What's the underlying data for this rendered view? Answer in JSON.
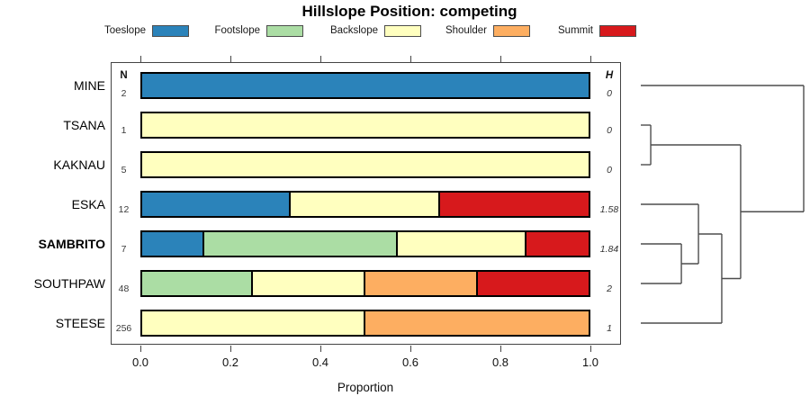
{
  "chart_data": {
    "type": "bar",
    "orientation": "horizontal-stacked",
    "title": "Hillslope Position: competing",
    "xlabel": "Proportion",
    "xlim": [
      0,
      1
    ],
    "xticks": [
      "0.0",
      "0.2",
      "0.4",
      "0.6",
      "0.8",
      "1.0"
    ],
    "grid": false,
    "legend_position": "top",
    "legend": [
      {
        "label": "Toeslope",
        "color": "#2B83BA"
      },
      {
        "label": "Footslope",
        "color": "#ABDDA4"
      },
      {
        "label": "Backslope",
        "color": "#FFFFBF"
      },
      {
        "label": "Shoulder",
        "color": "#FDAE61"
      },
      {
        "label": "Summit",
        "color": "#D7191C"
      }
    ],
    "columns": {
      "n_header": "N",
      "h_header": "H"
    },
    "rows": [
      {
        "label": "MINE",
        "n": "2",
        "h": "0",
        "bold": false,
        "segments": [
          {
            "category": "Toeslope",
            "value": 1.0
          }
        ]
      },
      {
        "label": "TSANA",
        "n": "1",
        "h": "0",
        "bold": false,
        "segments": [
          {
            "category": "Backslope",
            "value": 1.0
          }
        ]
      },
      {
        "label": "KAKNAU",
        "n": "5",
        "h": "0",
        "bold": false,
        "segments": [
          {
            "category": "Backslope",
            "value": 1.0
          }
        ]
      },
      {
        "label": "ESKA",
        "n": "12",
        "h": "1.58",
        "bold": false,
        "segments": [
          {
            "category": "Toeslope",
            "value": 0.3333
          },
          {
            "category": "Backslope",
            "value": 0.3334
          },
          {
            "category": "Summit",
            "value": 0.3333
          }
        ]
      },
      {
        "label": "SAMBRITO",
        "n": "7",
        "h": "1.84",
        "bold": true,
        "segments": [
          {
            "category": "Toeslope",
            "value": 0.1429
          },
          {
            "category": "Footslope",
            "value": 0.4286
          },
          {
            "category": "Backslope",
            "value": 0.2857
          },
          {
            "category": "Summit",
            "value": 0.1429
          }
        ]
      },
      {
        "label": "SOUTHPAW",
        "n": "48",
        "h": "2",
        "bold": false,
        "segments": [
          {
            "category": "Footslope",
            "value": 0.25
          },
          {
            "category": "Backslope",
            "value": 0.25
          },
          {
            "category": "Shoulder",
            "value": 0.25
          },
          {
            "category": "Summit",
            "value": 0.25
          }
        ]
      },
      {
        "label": "STEESE",
        "n": "256",
        "h": "1",
        "bold": false,
        "segments": [
          {
            "category": "Backslope",
            "value": 0.5
          },
          {
            "category": "Shoulder",
            "value": 0.5
          }
        ]
      }
    ],
    "dendrogram": {
      "leaf_order": [
        "MINE",
        "TSANA",
        "KAKNAU",
        "ESKA",
        "SAMBRITO",
        "SOUTHPAW",
        "STEESE"
      ],
      "merges": [
        {
          "id": "m1",
          "a": "TSANA",
          "b": "KAKNAU",
          "height": 0.061
        },
        {
          "id": "m2",
          "a": "SAMBRITO",
          "b": "SOUTHPAW",
          "height": 0.249
        },
        {
          "id": "m3",
          "a": "ESKA",
          "b": "m2",
          "height": 0.354
        },
        {
          "id": "m4",
          "a": "m3",
          "b": "STEESE",
          "height": 0.497
        },
        {
          "id": "m5",
          "a": "m1",
          "b": "m4",
          "height": 0.613
        },
        {
          "id": "m6",
          "a": "MINE",
          "b": "m5",
          "height": 1.0
        }
      ]
    }
  }
}
